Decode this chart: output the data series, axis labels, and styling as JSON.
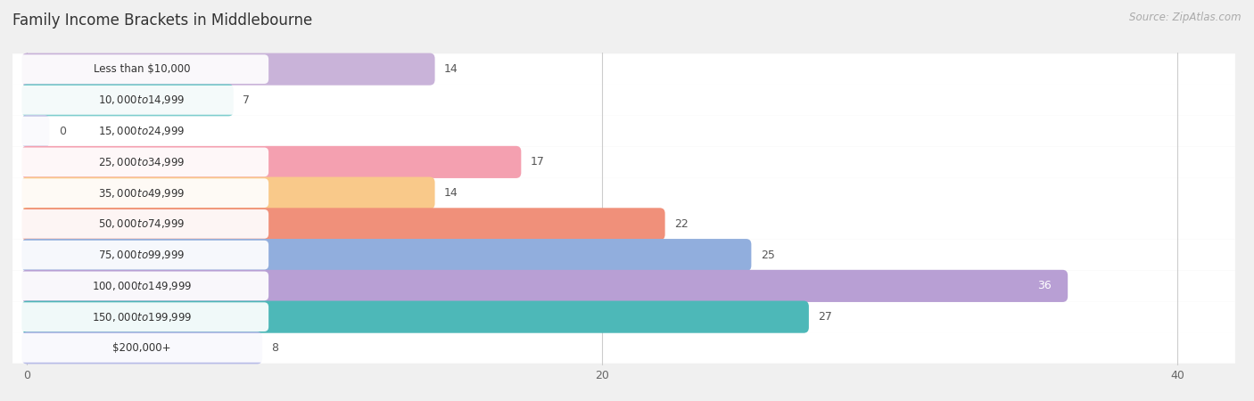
{
  "title": "Family Income Brackets in Middlebourne",
  "source": "Source: ZipAtlas.com",
  "categories": [
    "Less than $10,000",
    "$10,000 to $14,999",
    "$15,000 to $24,999",
    "$25,000 to $34,999",
    "$35,000 to $49,999",
    "$50,000 to $74,999",
    "$75,000 to $99,999",
    "$100,000 to $149,999",
    "$150,000 to $199,999",
    "$200,000+"
  ],
  "values": [
    14,
    7,
    0,
    17,
    14,
    22,
    25,
    36,
    27,
    8
  ],
  "bar_colors": [
    "#c9b3d9",
    "#7ecece",
    "#c5c8e8",
    "#f4a0b0",
    "#f9c98a",
    "#f0907a",
    "#91aedd",
    "#b89fd4",
    "#4db8b8",
    "#b8bce8"
  ],
  "value_inside_threshold": 28,
  "xlim_min": -0.5,
  "xlim_max": 42,
  "xticks": [
    0,
    20,
    40
  ],
  "bg_color": "#f0f0f0",
  "row_bg_color": "#ffffff",
  "row_alt_bg_color": "#f5f5f5",
  "grid_color": "#cccccc",
  "label_white": "#ffffff",
  "label_dark": "#555555",
  "title_color": "#333333",
  "source_color": "#aaaaaa",
  "title_fontsize": 12,
  "source_fontsize": 8.5,
  "cat_fontsize": 8.5,
  "val_fontsize": 9,
  "tick_fontsize": 9,
  "bar_height": 0.68
}
